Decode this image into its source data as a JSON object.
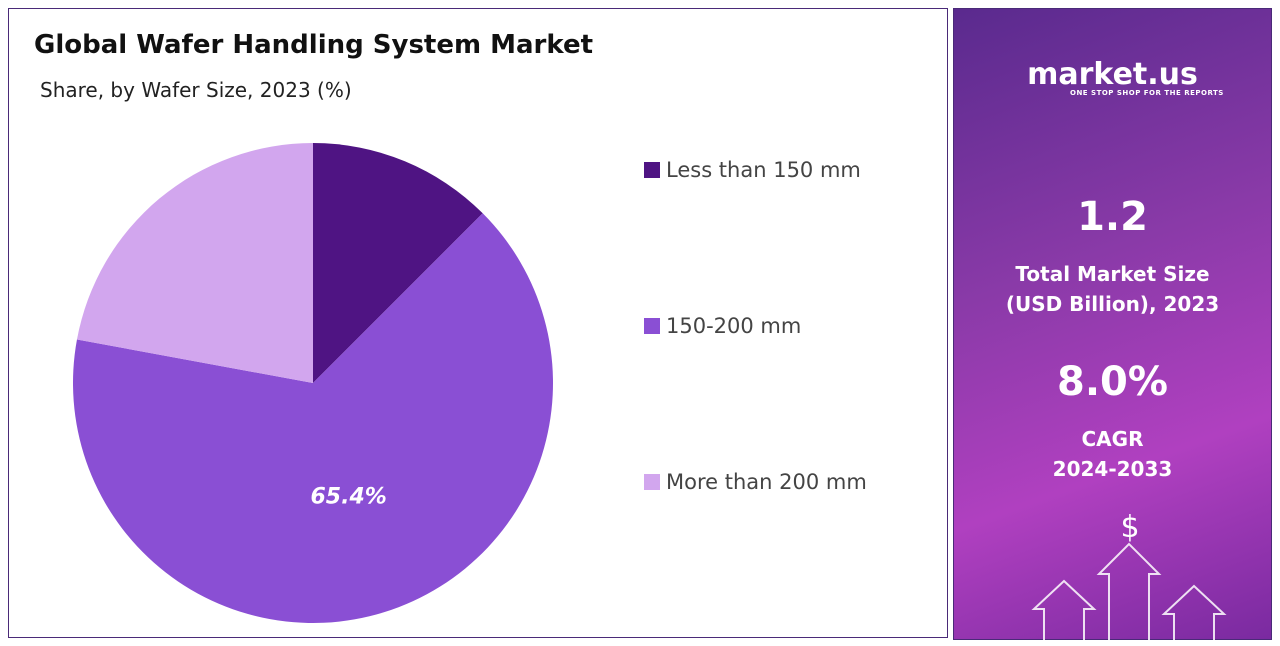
{
  "chart_data": {
    "type": "pie",
    "title": "Global Wafer Handling System Market",
    "subtitle": "Share, by Wafer Size, 2023 (%)",
    "categories": [
      "Less than 150 mm",
      "150-200 mm",
      "More than 200 mm"
    ],
    "values": [
      12.5,
      65.4,
      22.1
    ],
    "value_labels": [
      null,
      "65.4%",
      null
    ],
    "colors": [
      "#4f1483",
      "#8a4fd4",
      "#d2a6ee"
    ],
    "legend": "right"
  },
  "panel": {
    "brand": "market.us",
    "tagline": "ONE STOP SHOP FOR THE REPORTS",
    "market_size": "1.2",
    "market_size_label": "Total Market Size (USD Billion), 2023",
    "cagr": "8.0%",
    "cagr_label": "CAGR",
    "cagr_period": "2024-2033"
  }
}
